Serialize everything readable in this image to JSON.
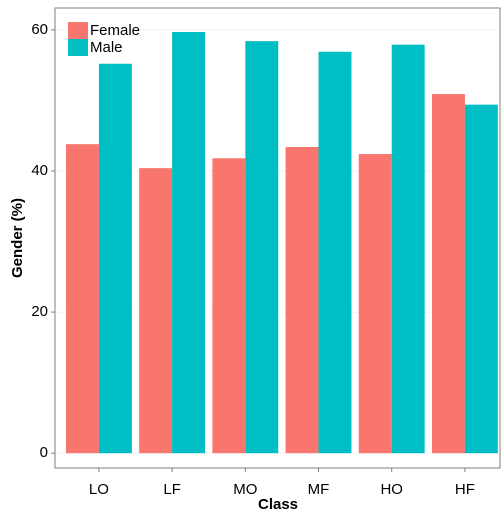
{
  "chart_data": {
    "type": "bar",
    "x_label": "Class",
    "y_label": "Gender (%)",
    "categories": [
      "LO",
      "LF",
      "MO",
      "MF",
      "HO",
      "HF"
    ],
    "series": [
      {
        "name": "Female",
        "color": "#F8766D",
        "values": [
          43.8,
          40.4,
          41.8,
          43.4,
          42.4,
          50.9
        ]
      },
      {
        "name": "Male",
        "color": "#00BFC4",
        "values": [
          55.2,
          59.7,
          58.4,
          56.9,
          57.9,
          49.4
        ]
      }
    ],
    "ylim": [
      -2.1,
      63.1
    ],
    "yticks": [
      0,
      20,
      40,
      60
    ],
    "grid": true,
    "legend": "top-left"
  }
}
